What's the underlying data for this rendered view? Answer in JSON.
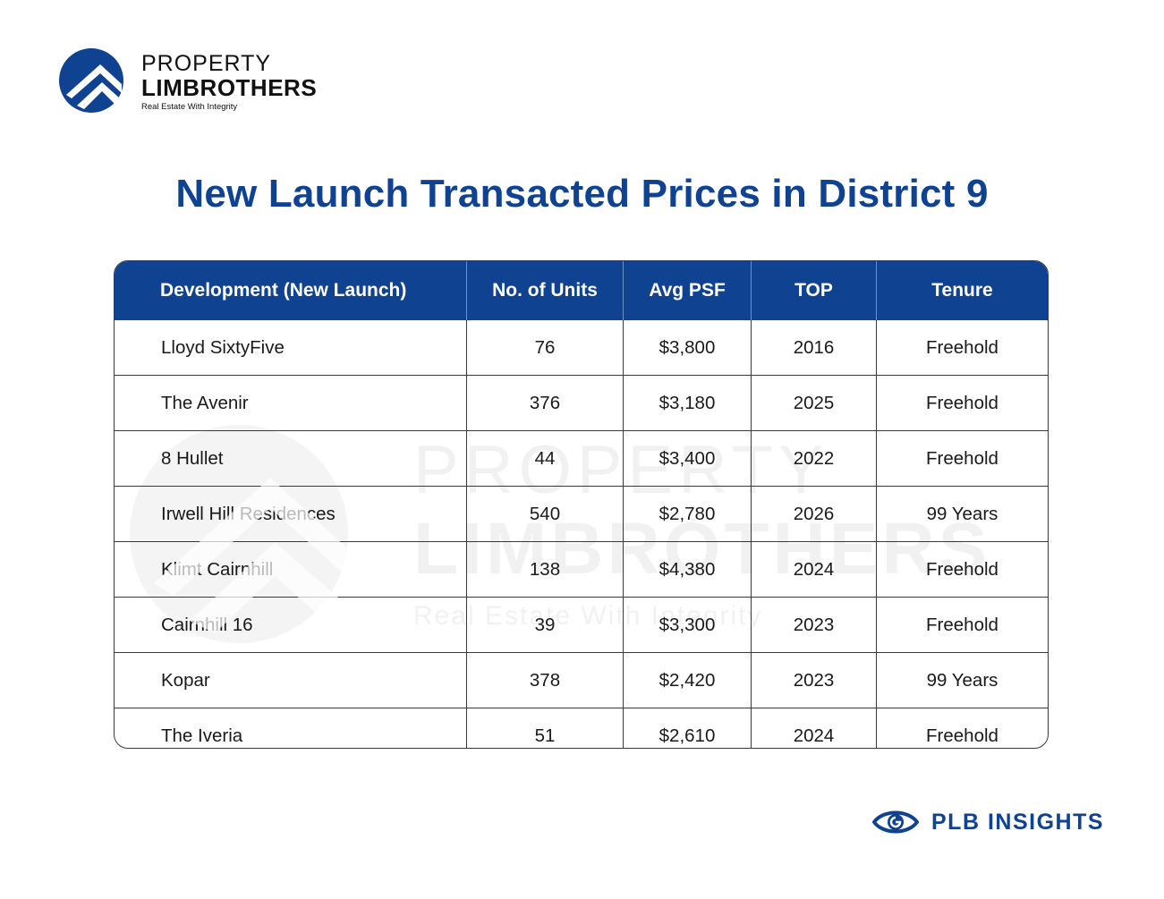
{
  "brand": {
    "line1": "PROPERTY",
    "line2": "LIMBROTHERS",
    "tagline": "Real Estate With Integrity"
  },
  "title": "New Launch Transacted Prices in District 9",
  "table": {
    "headers": [
      "Development (New Launch)",
      "No. of Units",
      "Avg PSF",
      "TOP",
      "Tenure"
    ],
    "rows": [
      [
        "Lloyd SixtyFive",
        "76",
        "$3,800",
        "2016",
        "Freehold"
      ],
      [
        "The Avenir",
        "376",
        "$3,180",
        "2025",
        "Freehold"
      ],
      [
        "8 Hullet",
        "44",
        "$3,400",
        "2022",
        "Freehold"
      ],
      [
        "Irwell Hill Residences",
        "540",
        "$2,780",
        "2026",
        "99 Years"
      ],
      [
        "Klimt Cairnhill",
        "138",
        "$4,380",
        "2024",
        "Freehold"
      ],
      [
        "Cairnhill 16",
        "39",
        "$3,300",
        "2023",
        "Freehold"
      ],
      [
        "Kopar",
        "378",
        "$2,420",
        "2023",
        "99 Years"
      ],
      [
        "The Iveria",
        "51",
        "$2,610",
        "2024",
        "Freehold"
      ]
    ]
  },
  "watermark": {
    "line1": "PROPERTY",
    "line2": "LIMBROTHERS",
    "line3": "Real Estate With Integrity"
  },
  "footer_brand": "PLB INSIGHTS",
  "colors": {
    "primary": "#0f4391",
    "border": "#3a3a3a",
    "header_text": "#ffffff"
  }
}
